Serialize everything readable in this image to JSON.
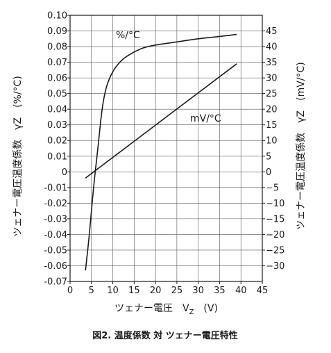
{
  "chart_data": {
    "type": "line",
    "caption": "図2. 温度係数 対 ツェナー電圧特性",
    "xlabel": "ツェナー電圧　V",
    "xlabel_sub": "Z",
    "xlabel_unit": "　(V)",
    "ylabel_left": "ツェナー電圧温度係数　γZ　(%/°C)",
    "ylabel_right": "ツェナー電圧温度係数　γZ　(mV/°C)",
    "xlim": [
      0,
      45
    ],
    "ylim_left": [
      -0.07,
      0.1
    ],
    "ylim_right": [
      -35,
      50
    ],
    "xticks": [
      "0",
      "5",
      "10",
      "15",
      "20",
      "25",
      "30",
      "35",
      "40",
      "45"
    ],
    "yticks_left": [
      "0.10",
      "0.09",
      "0.08",
      "0.07",
      "0.06",
      "0.05",
      "0.04",
      "0.03",
      "0.02",
      "0.01",
      "0",
      "-0.01",
      "-0.02",
      "-0.03",
      "-0.04",
      "-0.05",
      "-0.06",
      "-0.07"
    ],
    "yticks_right": [
      "45",
      "40",
      "35",
      "30",
      "25",
      "20",
      "15",
      "10",
      "5",
      "0",
      "−5",
      "−10",
      "−15",
      "−20",
      "−25",
      "−30"
    ],
    "grid": true,
    "series": [
      {
        "name": "%/°C",
        "axis": "left",
        "x": [
          3.6,
          4.5,
          5.5,
          6.5,
          7.5,
          8.5,
          10,
          12,
          14,
          17,
          20,
          25,
          30,
          35,
          39
        ],
        "y": [
          -0.063,
          -0.04,
          -0.01,
          0.015,
          0.04,
          0.054,
          0.064,
          0.071,
          0.075,
          0.079,
          0.081,
          0.083,
          0.085,
          0.0865,
          0.0878
        ]
      },
      {
        "name": "mV/°C",
        "axis": "right",
        "x": [
          3.6,
          39
        ],
        "y": [
          -2,
          34.5
        ]
      }
    ]
  }
}
